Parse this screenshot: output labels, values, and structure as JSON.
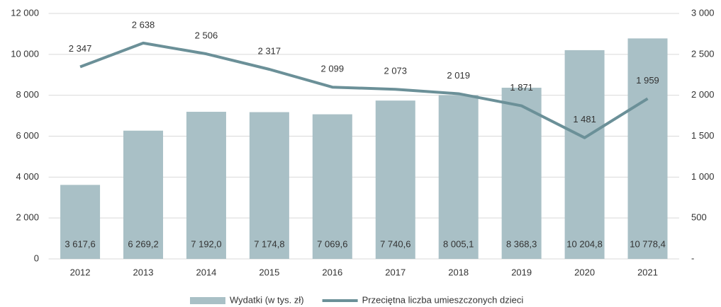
{
  "chart_data": {
    "type": "bar",
    "categories": [
      "2012",
      "2013",
      "2014",
      "2015",
      "2016",
      "2017",
      "2018",
      "2019",
      "2020",
      "2021"
    ],
    "series": [
      {
        "name": "Wydatki (w tys. zł)",
        "color": "#a9c0c6",
        "type": "bar",
        "values": [
          3617.6,
          6269.2,
          7192.0,
          7174.8,
          7069.6,
          7740.6,
          8005.1,
          8368.3,
          10204.8,
          10778.4
        ],
        "value_labels": [
          "3 617,6",
          "6 269,2",
          "7 192,0",
          "7 174,8",
          "7 069,6",
          "7 740,6",
          "8 005,1",
          "8 368,3",
          "10 204,8",
          "10 778,4"
        ]
      },
      {
        "name": "Przeciętna liczba umieszczonych dzieci",
        "color": "#6b9098",
        "type": "line",
        "axis": "y2",
        "values": [
          2347,
          2638,
          2506,
          2317,
          2099,
          2073,
          2019,
          1871,
          1481,
          1959
        ],
        "value_labels": [
          "2 347",
          "2 638",
          "2 506",
          "2 317",
          "2 099",
          "2 073",
          "2 019",
          "1 871",
          "1 481",
          "1 959"
        ]
      }
    ],
    "ylim": [
      0,
      12000
    ],
    "yticks": [
      0,
      {
        "value": 2000,
        "label": "2 000"
      },
      {
        "value": 4000,
        "label": "4 000"
      },
      {
        "value": 6000,
        "label": "6 000"
      },
      {
        "value": 8000,
        "label": "8 000"
      },
      {
        "value": 10000,
        "label": "10 000"
      },
      {
        "value": 12000,
        "label": "12 000"
      }
    ],
    "y2lim": [
      0,
      3000
    ],
    "y2ticks": [
      {
        "value": 0,
        "label": "-"
      },
      500,
      {
        "value": 1000,
        "label": "1 000"
      },
      {
        "value": 1500,
        "label": "1 500"
      },
      {
        "value": 2000,
        "label": "2 000"
      },
      {
        "value": 2500,
        "label": "2 500"
      },
      {
        "value": 3000,
        "label": "3 000"
      }
    ],
    "grid": true,
    "legend": "bottom"
  }
}
